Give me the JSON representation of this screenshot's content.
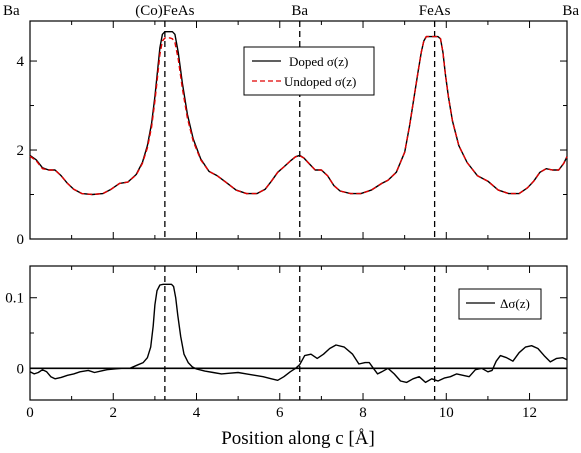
{
  "chart_data": [
    {
      "type": "line",
      "xlabel": "",
      "ylabel": "",
      "xlim": [
        0,
        12.9
      ],
      "ylim": [
        0,
        4.9
      ],
      "yticks": [
        0,
        2,
        4
      ],
      "site_labels": [
        {
          "text": "Ba",
          "x": 0
        },
        {
          "text": "(Co)FeAs",
          "x": 3.24
        },
        {
          "text": "Ba",
          "x": 6.48
        },
        {
          "text": "FeAs",
          "x": 9.72
        },
        {
          "text": "Ba",
          "x": 12.9
        }
      ],
      "vlines": [
        3.24,
        6.48,
        9.72
      ],
      "legend": [
        {
          "label": "Doped σ(z)",
          "color": "#000000",
          "style": "solid"
        },
        {
          "label": "Undoped σ(z)",
          "color": "#e00000",
          "style": "dashed"
        }
      ],
      "series": [
        {
          "name": "Doped σ(z)",
          "color": "#000000",
          "x": [
            0,
            0.15,
            0.3,
            0.45,
            0.6,
            0.75,
            0.9,
            1.05,
            1.25,
            1.5,
            1.75,
            1.95,
            2.15,
            2.35,
            2.55,
            2.7,
            2.82,
            2.92,
            3.0,
            3.06,
            3.12,
            3.18,
            3.24,
            3.3,
            3.36,
            3.42,
            3.48,
            3.56,
            3.66,
            3.78,
            3.92,
            4.1,
            4.3,
            4.5,
            4.7,
            4.95,
            5.2,
            5.45,
            5.65,
            5.8,
            5.95,
            6.1,
            6.25,
            6.38,
            6.48,
            6.58,
            6.7,
            6.85,
            7.0,
            7.15,
            7.3,
            7.45,
            7.7,
            7.95,
            8.2,
            8.45,
            8.6,
            8.8,
            9.0,
            9.12,
            9.22,
            9.32,
            9.4,
            9.46,
            9.52,
            9.58,
            9.64,
            9.72,
            9.8,
            9.86,
            9.92,
            9.98,
            10.05,
            10.15,
            10.3,
            10.5,
            10.75,
            11.0,
            11.25,
            11.5,
            11.75,
            11.95,
            12.1,
            12.25,
            12.4,
            12.55,
            12.7,
            12.82,
            12.9
          ],
          "y": [
            1.88,
            1.78,
            1.6,
            1.55,
            1.55,
            1.42,
            1.25,
            1.12,
            1.02,
            1.0,
            1.02,
            1.12,
            1.25,
            1.28,
            1.45,
            1.72,
            2.1,
            2.6,
            3.2,
            3.75,
            4.3,
            4.6,
            4.66,
            4.66,
            4.66,
            4.66,
            4.6,
            4.2,
            3.5,
            2.8,
            2.25,
            1.8,
            1.52,
            1.42,
            1.28,
            1.1,
            1.02,
            1.02,
            1.12,
            1.3,
            1.5,
            1.62,
            1.75,
            1.85,
            1.88,
            1.82,
            1.7,
            1.55,
            1.55,
            1.42,
            1.2,
            1.08,
            1.02,
            1.02,
            1.1,
            1.25,
            1.32,
            1.5,
            1.95,
            2.55,
            3.15,
            3.75,
            4.2,
            4.45,
            4.55,
            4.55,
            4.55,
            4.55,
            4.55,
            4.5,
            4.2,
            3.7,
            3.2,
            2.65,
            2.1,
            1.72,
            1.42,
            1.3,
            1.1,
            1.02,
            1.02,
            1.15,
            1.3,
            1.5,
            1.58,
            1.55,
            1.55,
            1.7,
            1.85
          ]
        },
        {
          "name": "Undoped σ(z)",
          "color": "#e00000",
          "x": [
            0,
            0.15,
            0.3,
            0.45,
            0.6,
            0.75,
            0.9,
            1.05,
            1.25,
            1.5,
            1.75,
            1.95,
            2.15,
            2.35,
            2.55,
            2.7,
            2.82,
            2.92,
            3.0,
            3.06,
            3.12,
            3.18,
            3.24,
            3.3,
            3.36,
            3.42,
            3.48,
            3.56,
            3.66,
            3.78,
            3.92,
            4.1,
            4.3,
            4.5,
            4.7,
            4.95,
            5.2,
            5.45,
            5.65,
            5.8,
            5.95,
            6.1,
            6.25,
            6.38,
            6.48,
            6.58,
            6.7,
            6.85,
            7.0,
            7.15,
            7.3,
            7.45,
            7.7,
            7.95,
            8.2,
            8.45,
            8.6,
            8.8,
            9.0,
            9.12,
            9.22,
            9.32,
            9.4,
            9.46,
            9.52,
            9.58,
            9.64,
            9.72,
            9.8,
            9.86,
            9.92,
            9.98,
            10.05,
            10.15,
            10.3,
            10.5,
            10.75,
            11.0,
            11.25,
            11.5,
            11.75,
            11.95,
            12.1,
            12.25,
            12.4,
            12.55,
            12.7,
            12.82,
            12.9
          ],
          "y": [
            1.86,
            1.76,
            1.58,
            1.55,
            1.55,
            1.42,
            1.25,
            1.12,
            1.02,
            1.0,
            1.02,
            1.12,
            1.25,
            1.28,
            1.44,
            1.7,
            2.05,
            2.52,
            3.1,
            3.62,
            4.15,
            4.45,
            4.52,
            4.52,
            4.52,
            4.5,
            4.42,
            4.05,
            3.38,
            2.72,
            2.2,
            1.78,
            1.52,
            1.42,
            1.28,
            1.1,
            1.02,
            1.02,
            1.12,
            1.3,
            1.5,
            1.62,
            1.75,
            1.85,
            1.87,
            1.82,
            1.7,
            1.55,
            1.55,
            1.42,
            1.2,
            1.08,
            1.02,
            1.02,
            1.1,
            1.25,
            1.32,
            1.5,
            1.95,
            2.55,
            3.15,
            3.75,
            4.2,
            4.45,
            4.55,
            4.55,
            4.55,
            4.55,
            4.55,
            4.5,
            4.2,
            3.7,
            3.2,
            2.65,
            2.1,
            1.72,
            1.42,
            1.3,
            1.1,
            1.02,
            1.02,
            1.15,
            1.3,
            1.5,
            1.58,
            1.55,
            1.55,
            1.7,
            1.85
          ]
        }
      ]
    },
    {
      "type": "line",
      "xlabel": "Position along c [Å]",
      "ylabel": "",
      "xlim": [
        0,
        12.9
      ],
      "ylim": [
        -0.045,
        0.145
      ],
      "yticks": [
        0,
        0.1
      ],
      "ytick_labels": [
        "0",
        "0.1"
      ],
      "xticks": [
        0,
        2,
        4,
        6,
        8,
        10,
        12
      ],
      "vlines": [
        3.24,
        6.48,
        9.72
      ],
      "hline": 0,
      "legend": [
        {
          "label": "Δσ(z)",
          "color": "#000000",
          "style": "solid"
        }
      ],
      "series": [
        {
          "name": "Δσ(z)",
          "color": "#000000",
          "x": [
            0,
            0.1,
            0.2,
            0.3,
            0.4,
            0.5,
            0.6,
            0.75,
            0.9,
            1.05,
            1.2,
            1.4,
            1.55,
            1.7,
            1.85,
            2.0,
            2.2,
            2.4,
            2.6,
            2.72,
            2.82,
            2.9,
            2.96,
            3.0,
            3.05,
            3.12,
            3.2,
            3.3,
            3.4,
            3.45,
            3.5,
            3.55,
            3.62,
            3.7,
            3.8,
            3.9,
            4.0,
            4.2,
            4.4,
            4.6,
            4.8,
            5.0,
            5.2,
            5.4,
            5.6,
            5.8,
            5.95,
            6.1,
            6.25,
            6.38,
            6.48,
            6.6,
            6.75,
            6.9,
            7.05,
            7.2,
            7.35,
            7.55,
            7.75,
            7.9,
            8.05,
            8.15,
            8.25,
            8.35,
            8.45,
            8.6,
            8.75,
            8.9,
            9.05,
            9.2,
            9.35,
            9.5,
            9.65,
            9.8,
            9.95,
            10.1,
            10.25,
            10.4,
            10.55,
            10.7,
            10.85,
            11.0,
            11.1,
            11.2,
            11.3,
            11.45,
            11.6,
            11.75,
            11.9,
            12.05,
            12.2,
            12.35,
            12.5,
            12.65,
            12.8,
            12.9
          ],
          "y": [
            -0.005,
            -0.008,
            -0.006,
            -0.002,
            -0.005,
            -0.012,
            -0.015,
            -0.013,
            -0.01,
            -0.008,
            -0.005,
            -0.003,
            -0.006,
            -0.004,
            -0.002,
            -0.001,
            0.0,
            0.0,
            0.005,
            0.008,
            0.015,
            0.03,
            0.06,
            0.09,
            0.11,
            0.118,
            0.119,
            0.119,
            0.119,
            0.116,
            0.1,
            0.075,
            0.045,
            0.02,
            0.008,
            0.002,
            -0.001,
            -0.004,
            -0.006,
            -0.008,
            -0.007,
            -0.006,
            -0.008,
            -0.01,
            -0.012,
            -0.015,
            -0.017,
            -0.012,
            -0.005,
            0.0,
            0.005,
            0.018,
            0.02,
            0.014,
            0.02,
            0.028,
            0.033,
            0.03,
            0.02,
            0.006,
            0.008,
            0.008,
            0.0,
            -0.008,
            -0.005,
            0.0,
            -0.008,
            -0.018,
            -0.02,
            -0.015,
            -0.012,
            -0.02,
            -0.015,
            -0.018,
            -0.014,
            -0.012,
            -0.008,
            -0.01,
            -0.012,
            -0.002,
            0.0,
            -0.005,
            -0.003,
            0.01,
            0.018,
            0.015,
            0.01,
            0.022,
            0.03,
            0.032,
            0.028,
            0.018,
            0.009,
            0.014,
            0.015,
            0.012
          ]
        }
      ]
    }
  ]
}
